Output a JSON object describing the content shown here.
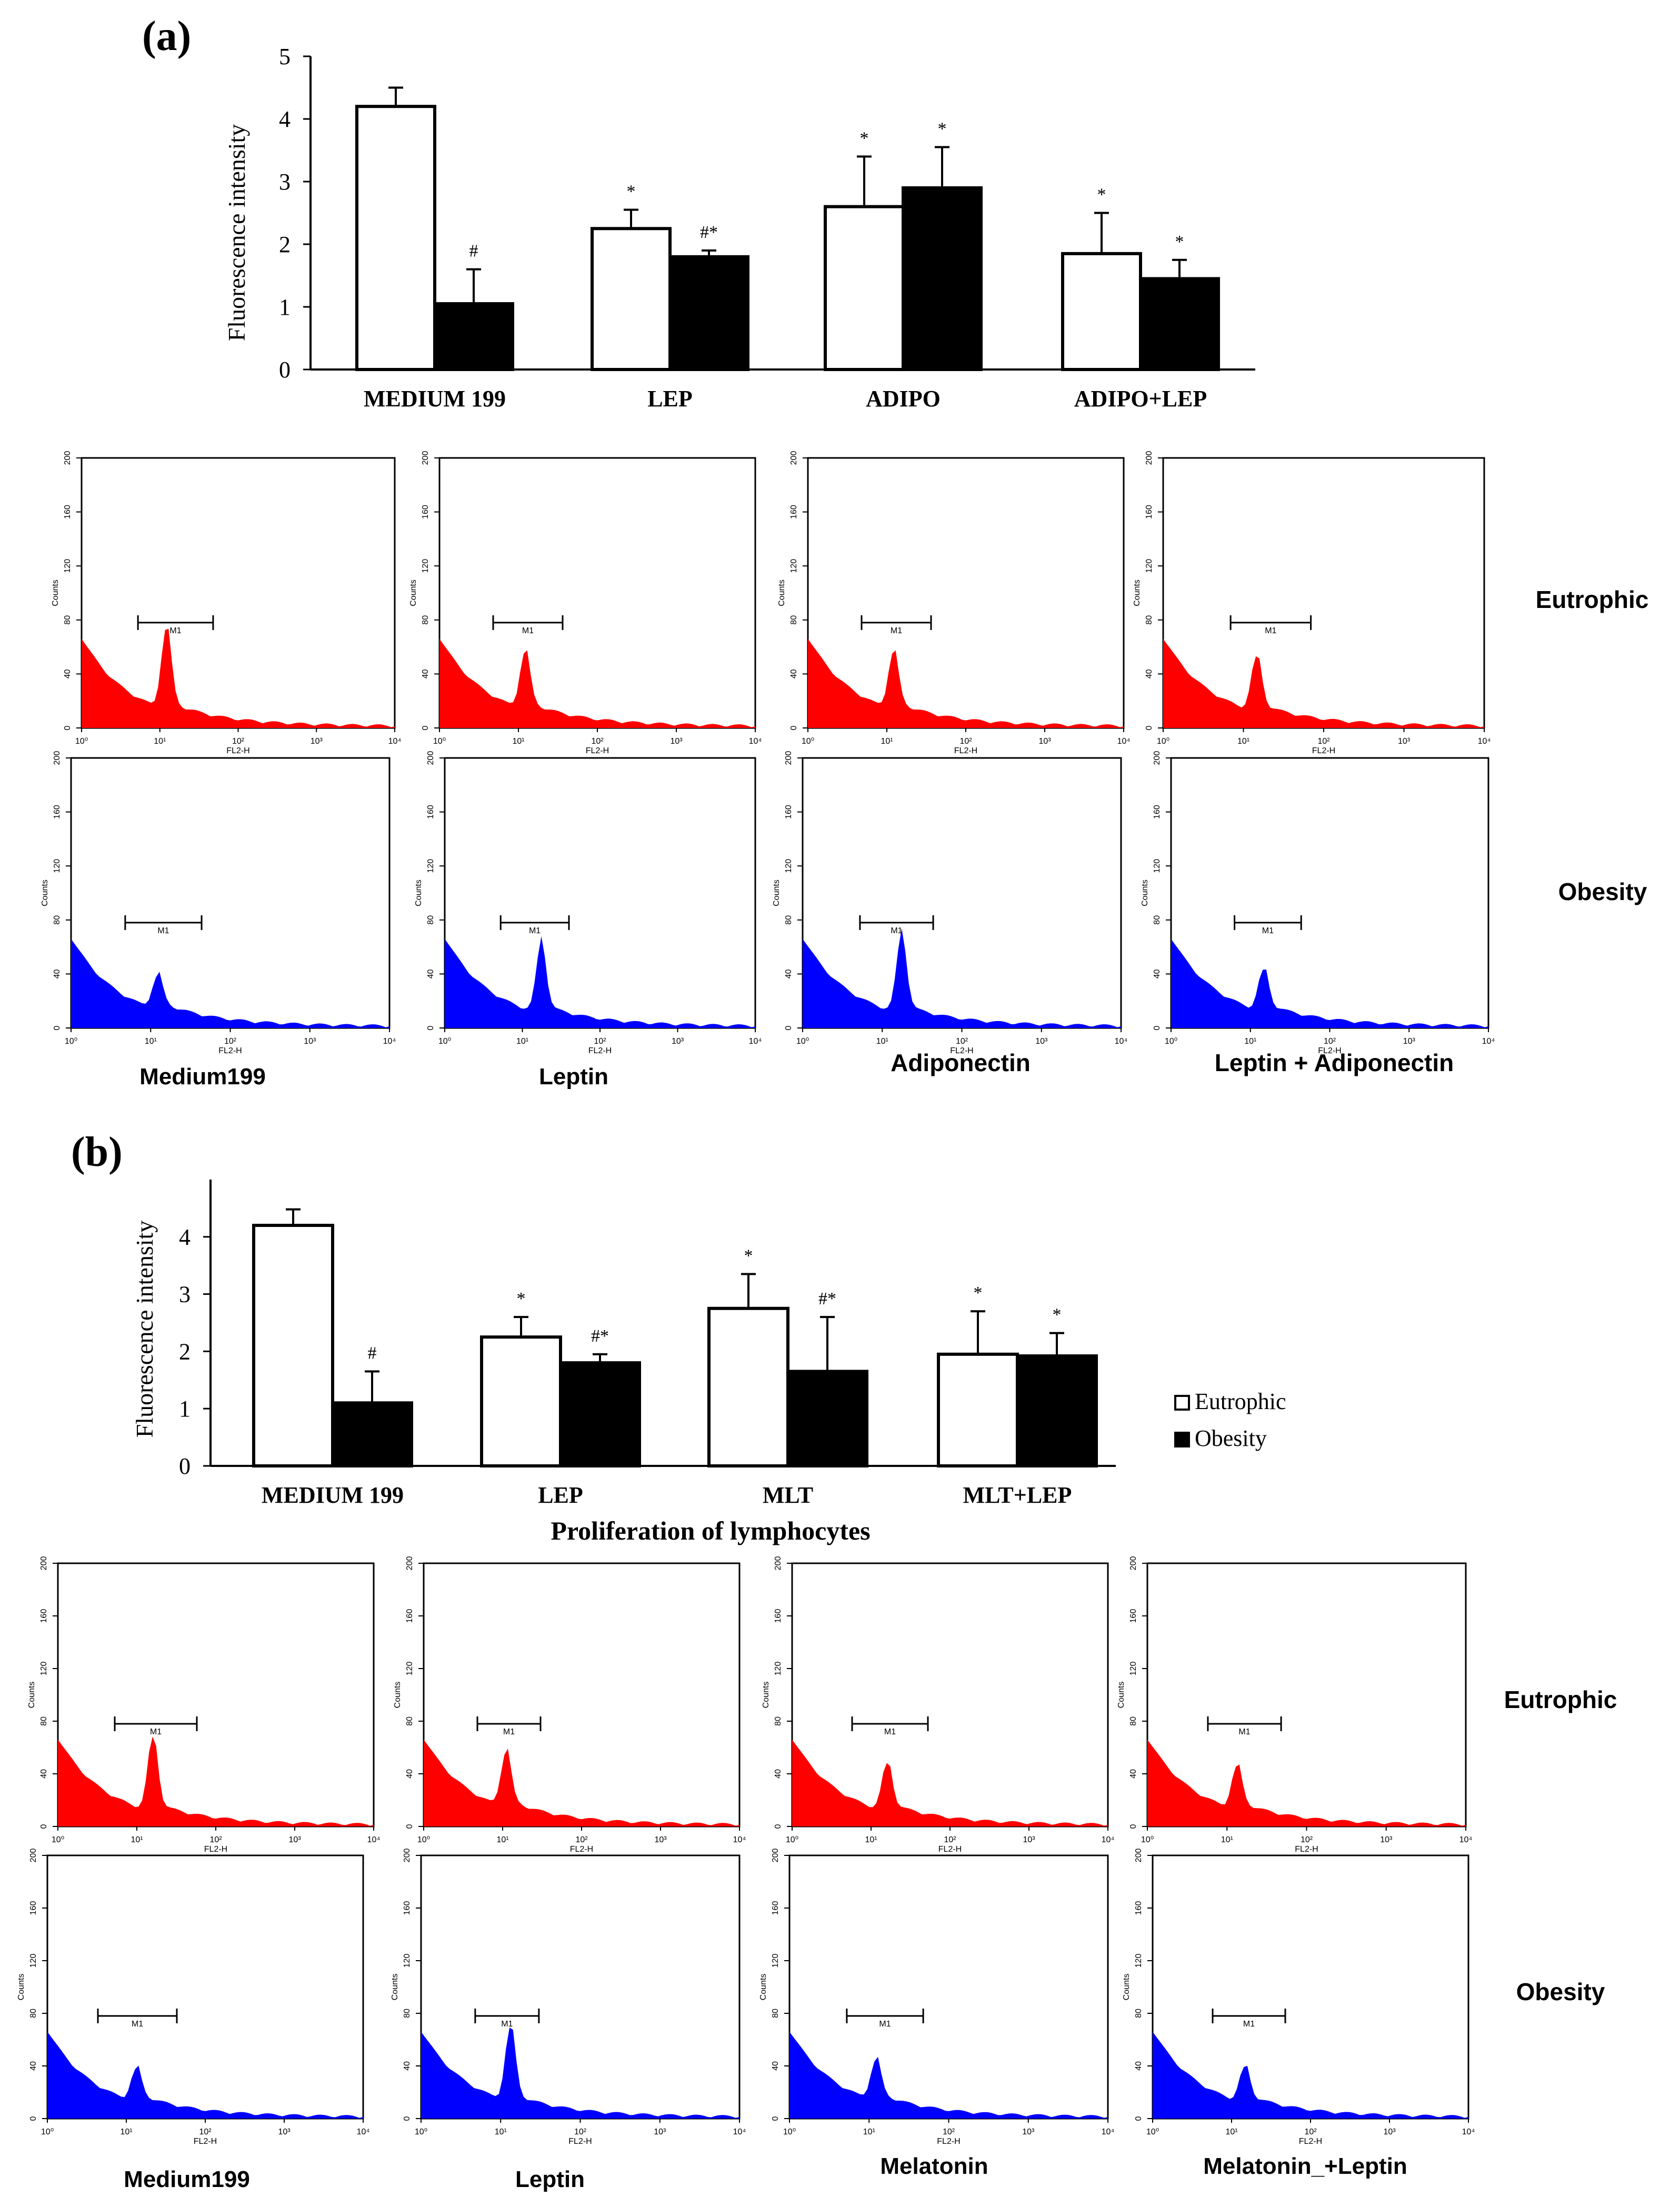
{
  "panel_a": {
    "label": "(a)",
    "chart_data": {
      "type": "bar",
      "title": "",
      "xlabel": "",
      "ylabel": "Fluorescence intensity",
      "ylim": [
        0,
        5
      ],
      "yticks": [
        "0",
        "1",
        "2",
        "3",
        "4",
        "5"
      ],
      "categories": [
        "MEDIUM 199",
        "LEP",
        "ADIPO",
        "ADIPO+LEP"
      ],
      "series": [
        {
          "name": "",
          "fill": "#ffffff",
          "values": [
            4.2,
            2.25,
            2.6,
            1.85
          ],
          "errors": [
            0.3,
            0.3,
            0.8,
            0.65
          ],
          "marks": [
            "",
            "*",
            "*",
            "*"
          ]
        },
        {
          "name": "",
          "fill": "#000000",
          "values": [
            1.05,
            1.8,
            2.9,
            1.45
          ],
          "errors": [
            0.55,
            0.1,
            0.65,
            0.3
          ],
          "marks": [
            "#",
            "#*",
            "*",
            "*"
          ]
        }
      ]
    },
    "histograms": {
      "rows": [
        "Eutrophic",
        "Obesity"
      ],
      "labels": [
        "Medium199",
        "Leptin",
        "Adiponectin",
        "Leptin + Adiponectin"
      ]
    }
  },
  "panel_b": {
    "label": "(b)",
    "chart_data": {
      "type": "bar",
      "title": "",
      "xlabel": "Proliferation of lymphocytes",
      "ylabel": "Fluorescence intensity",
      "ylim": [
        0,
        5
      ],
      "yticks": [
        "0",
        "1",
        "2",
        "3",
        "4"
      ],
      "categories": [
        "MEDIUM 199",
        "LEP",
        "MLT",
        "MLT+LEP"
      ],
      "legend_position": "right",
      "series": [
        {
          "name": "Eutrophic",
          "fill": "#ffffff",
          "values": [
            4.2,
            2.25,
            2.75,
            1.95
          ],
          "errors": [
            0.28,
            0.35,
            0.6,
            0.75
          ],
          "marks": [
            "",
            "*",
            "*",
            "*"
          ]
        },
        {
          "name": "Obesity",
          "fill": "#000000",
          "values": [
            1.1,
            1.8,
            1.65,
            1.92
          ],
          "errors": [
            0.55,
            0.15,
            0.95,
            0.4
          ],
          "marks": [
            "#",
            "#*",
            "#*",
            "*"
          ]
        }
      ]
    },
    "histograms": {
      "rows": [
        "Eutrophic",
        "Obesity"
      ],
      "labels": [
        "Medium199",
        "Leptin",
        "Melatonin",
        "Melatonin_+Leptin"
      ]
    }
  },
  "histogram_axes": {
    "y_label": "Counts",
    "y_ticks": [
      "0",
      "40",
      "80",
      "120",
      "160",
      "200"
    ],
    "x_ticks": [
      "10⁰",
      "10¹",
      "10²",
      "10³",
      "10⁴"
    ],
    "x_label": "FL2-H",
    "marker": "M1",
    "colors": {
      "Eutrophic": "#ff0000",
      "Obesity": "#0000ff"
    }
  }
}
